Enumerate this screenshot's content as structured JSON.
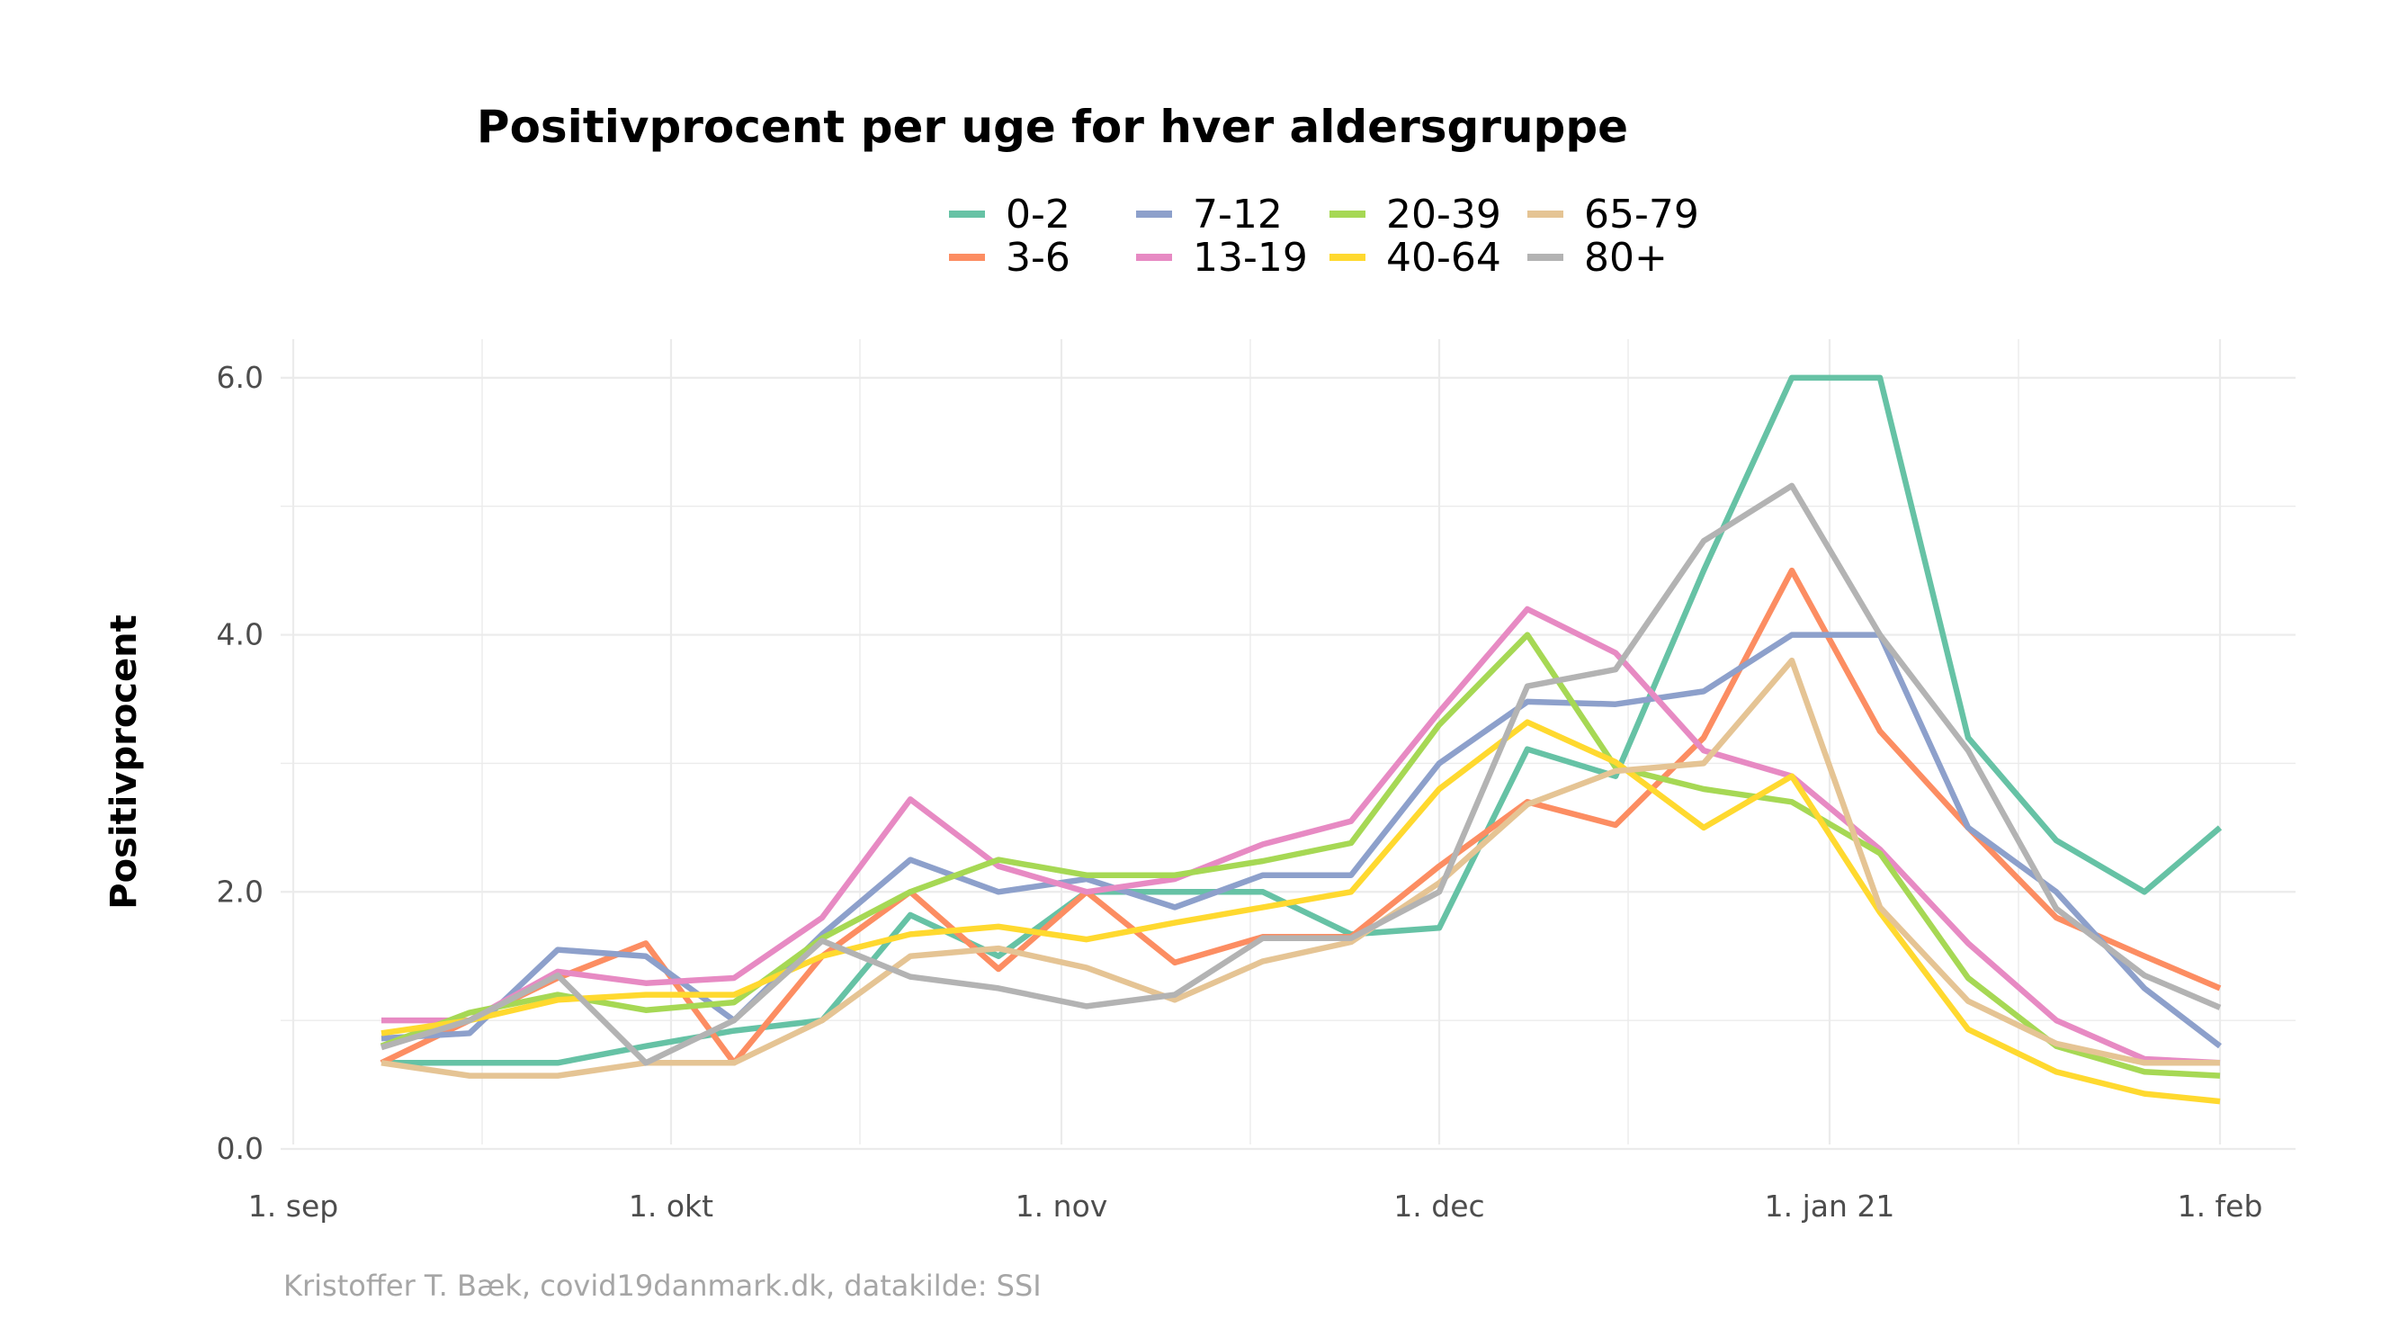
{
  "chart_data": {
    "type": "line",
    "title": "Positivprocent per uge for hver aldersgruppe",
    "ylabel": "Positivprocent",
    "xlabel": "",
    "caption": "Kristoffer T. Bæk, covid19danmark.dk, datakilde: SSI",
    "ylim": [
      0,
      6.3
    ],
    "yticks": [
      {
        "value": 0,
        "label": "0.0"
      },
      {
        "value": 2,
        "label": "2.0"
      },
      {
        "value": 4,
        "label": "4.0"
      },
      {
        "value": 6,
        "label": "6.0"
      }
    ],
    "x_range": [
      "2020-08-31",
      "2021-02-07"
    ],
    "xticks": [
      {
        "date": "2020-09-01",
        "label": "1. sep"
      },
      {
        "date": "2020-10-01",
        "label": "1. okt"
      },
      {
        "date": "2020-11-01",
        "label": "1. nov"
      },
      {
        "date": "2020-12-01",
        "label": "1. dec"
      },
      {
        "date": "2021-01-01",
        "label": "1. jan 21"
      },
      {
        "date": "2021-02-01",
        "label": "1. feb"
      }
    ],
    "x_minor_ticks": [
      "2020-09-16",
      "2020-10-16",
      "2020-11-16",
      "2020-12-16",
      "2021-01-16"
    ],
    "grid": true,
    "legend_position": "top",
    "x": [
      "2020-09-08",
      "2020-09-15",
      "2020-09-22",
      "2020-09-29",
      "2020-10-06",
      "2020-10-13",
      "2020-10-20",
      "2020-10-27",
      "2020-11-03",
      "2020-11-10",
      "2020-11-17",
      "2020-11-24",
      "2020-12-01",
      "2020-12-08",
      "2020-12-15",
      "2020-12-22",
      "2020-12-29",
      "2021-01-05",
      "2021-01-12",
      "2021-01-19",
      "2021-01-26",
      "2021-02-01"
    ],
    "series": [
      {
        "name": "0-2",
        "color": "#66c2a5",
        "values": [
          0.67,
          0.67,
          0.67,
          0.8,
          0.92,
          1.0,
          1.82,
          1.5,
          2.0,
          2.0,
          2.0,
          1.67,
          1.72,
          3.11,
          2.9,
          4.5,
          6.0,
          6.0,
          3.2,
          2.4,
          2.0,
          2.5
        ]
      },
      {
        "name": "3-6",
        "color": "#fc8d62",
        "values": [
          0.67,
          1.0,
          1.33,
          1.6,
          0.67,
          1.5,
          2.0,
          1.4,
          2.0,
          1.45,
          1.65,
          1.65,
          2.2,
          2.7,
          2.52,
          3.2,
          4.5,
          3.25,
          2.5,
          1.8,
          1.5,
          1.25
        ]
      },
      {
        "name": "7-12",
        "color": "#8da0cb",
        "values": [
          0.86,
          0.9,
          1.55,
          1.5,
          1.0,
          1.67,
          2.25,
          2.0,
          2.1,
          1.88,
          2.13,
          2.13,
          3.0,
          3.48,
          3.46,
          3.56,
          4.0,
          4.0,
          2.5,
          2.0,
          1.25,
          0.8
        ]
      },
      {
        "name": "13-19",
        "color": "#e78ac3",
        "values": [
          1.0,
          1.0,
          1.38,
          1.29,
          1.33,
          1.8,
          2.72,
          2.2,
          2.0,
          2.1,
          2.37,
          2.55,
          3.4,
          4.2,
          3.86,
          3.1,
          2.9,
          2.33,
          1.6,
          1.0,
          0.7,
          0.67
        ]
      },
      {
        "name": "20-39",
        "color": "#a6d854",
        "values": [
          0.8,
          1.06,
          1.2,
          1.08,
          1.14,
          1.64,
          2.0,
          2.25,
          2.13,
          2.13,
          2.24,
          2.38,
          3.3,
          4.0,
          2.97,
          2.8,
          2.7,
          2.3,
          1.33,
          0.8,
          0.6,
          0.57
        ]
      },
      {
        "name": "40-64",
        "color": "#ffd92f",
        "values": [
          0.9,
          1.0,
          1.16,
          1.2,
          1.2,
          1.5,
          1.67,
          1.73,
          1.63,
          1.76,
          1.88,
          2.0,
          2.8,
          3.32,
          3.01,
          2.5,
          2.9,
          1.84,
          0.93,
          0.6,
          0.43,
          0.37
        ]
      },
      {
        "name": "65-79",
        "color": "#e5c494",
        "values": [
          0.67,
          0.57,
          0.57,
          0.67,
          0.67,
          1.0,
          1.5,
          1.56,
          1.41,
          1.16,
          1.46,
          1.61,
          2.07,
          2.68,
          2.94,
          3.0,
          3.8,
          1.88,
          1.15,
          0.82,
          0.67,
          0.67
        ]
      },
      {
        "name": "80+",
        "color": "#b3b3b3",
        "values": [
          0.79,
          1.0,
          1.35,
          0.67,
          1.0,
          1.62,
          1.34,
          1.25,
          1.11,
          1.2,
          1.64,
          1.64,
          2.0,
          3.6,
          3.73,
          4.73,
          5.16,
          4.0,
          3.1,
          1.87,
          1.35,
          1.1
        ]
      }
    ]
  }
}
